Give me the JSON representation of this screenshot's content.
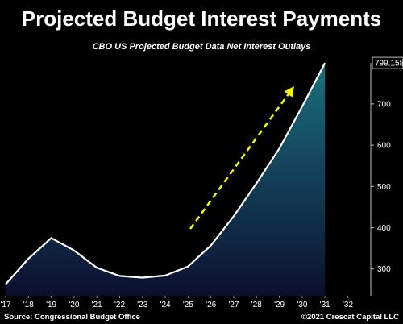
{
  "title": "Projected Budget Interest Payments",
  "colors": {
    "background": "#000000",
    "line": "#ffffff",
    "area_top": "#1b6f7e",
    "area_bottom": "#0b0f2e",
    "arrow": "#f5f50a",
    "text": "#ffffff"
  },
  "chart_data": {
    "type": "area",
    "title": "CBO US Projected Budget Data Net Interest Outlays",
    "x": [
      "'17",
      "'18",
      "'19",
      "'20",
      "'21",
      "'22",
      "'23",
      "'24",
      "'25",
      "'26",
      "'27",
      "'28",
      "'29",
      "'30",
      "'31"
    ],
    "x_tick_labels": [
      "'17",
      "'18",
      "'19",
      "'20",
      "'21",
      "'22",
      "'23",
      "'24",
      "'25",
      "'26",
      "'27",
      "'28",
      "'29",
      "'30",
      "'31",
      "'32"
    ],
    "series": [
      {
        "values": [
          263,
          325,
          375,
          345,
          303,
          283,
          279,
          284,
          306,
          357,
          428,
          508,
          592,
          694,
          799.158
        ]
      }
    ],
    "y_ticks": [
      300,
      400,
      500,
      600,
      700
    ],
    "ylim": [
      235,
      815
    ],
    "y_axis_side": "right",
    "last_value_label": "799.158",
    "annotation": "yellow dashed upward arrow",
    "grid": false
  },
  "footer": {
    "source": "Source: Congressional Budget Office",
    "copyright": "©2021 Crescat Capital LLC"
  }
}
